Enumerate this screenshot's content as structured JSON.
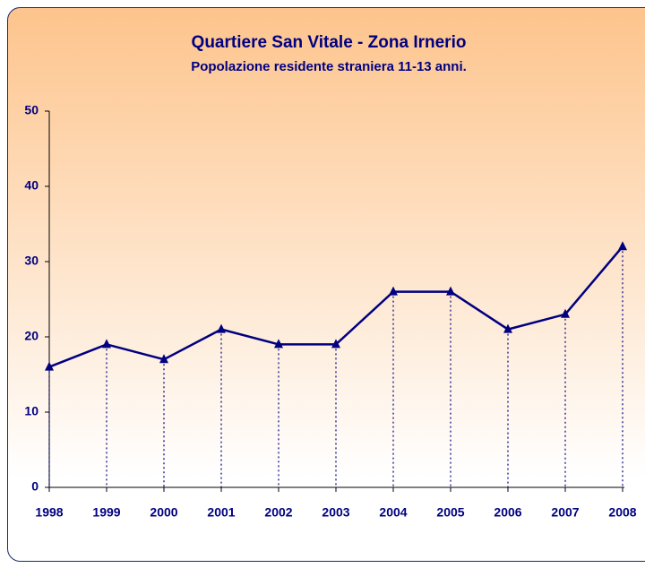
{
  "chart_data": {
    "type": "line",
    "title": "Quartiere San Vitale - Zona Irnerio",
    "subtitle": "Popolazione residente straniera 11-13 anni.",
    "categories": [
      "1998",
      "1999",
      "2000",
      "2001",
      "2002",
      "2003",
      "2004",
      "2005",
      "2006",
      "2007",
      "2008"
    ],
    "values": [
      16,
      19,
      17,
      21,
      19,
      19,
      26,
      26,
      21,
      23,
      32
    ],
    "color": "#000080",
    "ylim": [
      0,
      50
    ],
    "yticks": [
      0,
      10,
      20,
      30,
      40,
      50
    ],
    "drop_lines": true,
    "grid": false
  }
}
